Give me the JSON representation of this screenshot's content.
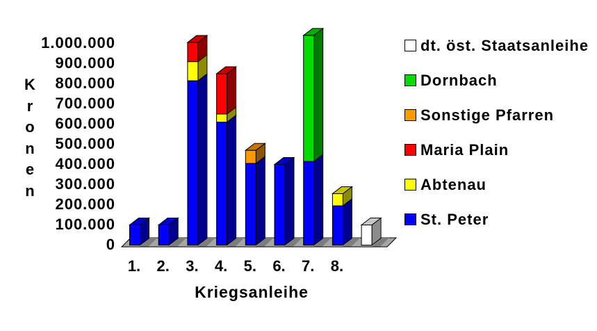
{
  "background": "#FFFFFF",
  "chart_data": {
    "type": "bar",
    "stacked": true,
    "style_3d": true,
    "title": "",
    "xlabel": "Kriegsanleihe",
    "ylabel": "Kronen",
    "ylim": [
      0,
      1000000
    ],
    "grid": false,
    "ytick_labels": [
      "1.000.000",
      "900.000",
      "800.000",
      "700.000",
      "600.000",
      "500.000",
      "400.000",
      "300.000",
      "200.000",
      "100.000",
      "0"
    ],
    "categories": [
      "1.",
      "2.",
      "3.",
      "4.",
      "5.",
      "6.",
      "7.",
      "8.",
      ""
    ],
    "series": [
      {
        "name": "St. Peter",
        "color": "#0000FF",
        "values": [
          100000,
          100000,
          815000,
          610000,
          405000,
          400000,
          415000,
          195000,
          0
        ]
      },
      {
        "name": "Abtenau",
        "color": "#FFFF00",
        "values": [
          0,
          0,
          95000,
          40000,
          0,
          0,
          0,
          60000,
          0
        ]
      },
      {
        "name": "Maria Plain",
        "color": "#FF0000",
        "values": [
          0,
          0,
          95000,
          200000,
          0,
          0,
          0,
          0,
          0
        ]
      },
      {
        "name": "Sonstige Pfarren",
        "color": "#FF9900",
        "values": [
          0,
          0,
          0,
          0,
          65000,
          0,
          0,
          0,
          0
        ]
      },
      {
        "name": "Dornbach",
        "color": "#00DD00",
        "values": [
          0,
          0,
          0,
          0,
          0,
          0,
          625000,
          0,
          0
        ]
      },
      {
        "name": "dt. öst. Staatsanleihe",
        "color": "#FFFFFF",
        "values": [
          0,
          0,
          0,
          0,
          0,
          0,
          0,
          0,
          100000
        ]
      }
    ],
    "legend": {
      "position": "right",
      "order": [
        "dt. öst. Staatsanleihe",
        "Dornbach",
        "Sonstige Pfarren",
        "Maria Plain",
        "Abtenau",
        "St. Peter"
      ]
    },
    "floor_color": "#A6A6A6",
    "shadow_color": "#7D7D7D",
    "text_color": "#000000"
  }
}
